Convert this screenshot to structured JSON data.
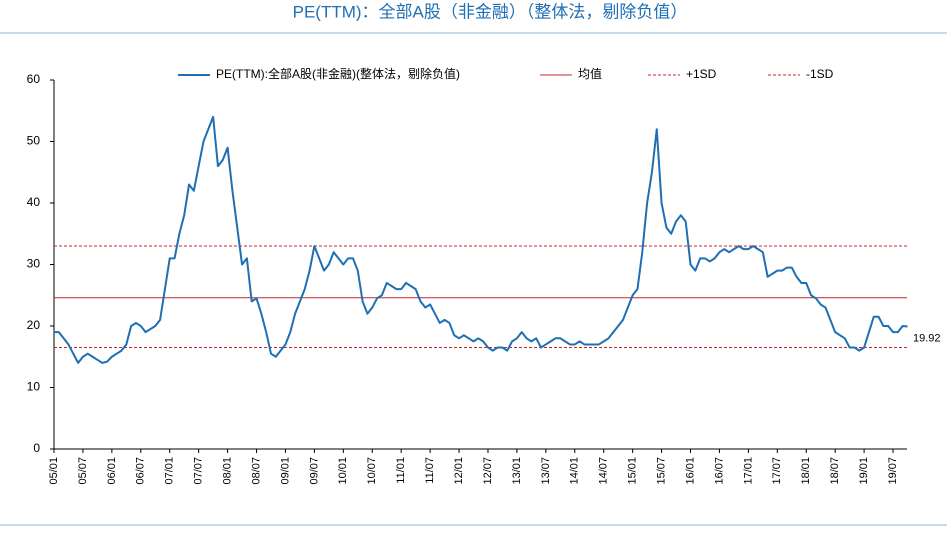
{
  "chart_data": {
    "type": "line",
    "title": "PE(TTM)：全部A股（非金融）（整体法，剔除负值）",
    "categories": [
      "05/01",
      null,
      null,
      null,
      null,
      null,
      "05/07",
      null,
      null,
      null,
      null,
      null,
      "06/01",
      null,
      null,
      null,
      null,
      null,
      "06/07",
      null,
      null,
      null,
      null,
      null,
      "07/01",
      null,
      null,
      null,
      null,
      null,
      "07/07",
      null,
      null,
      null,
      null,
      null,
      "08/01",
      null,
      null,
      null,
      null,
      null,
      "08/07",
      null,
      null,
      null,
      null,
      null,
      "09/01",
      null,
      null,
      null,
      null,
      null,
      "09/07",
      null,
      null,
      null,
      null,
      null,
      "10/01",
      null,
      null,
      null,
      null,
      null,
      "10/07",
      null,
      null,
      null,
      null,
      null,
      "11/01",
      null,
      null,
      null,
      null,
      null,
      "11/07",
      null,
      null,
      null,
      null,
      null,
      "12/01",
      null,
      null,
      null,
      null,
      null,
      "12/07",
      null,
      null,
      null,
      null,
      null,
      "13/01",
      null,
      null,
      null,
      null,
      null,
      "13/07",
      null,
      null,
      null,
      null,
      null,
      "14/01",
      null,
      null,
      null,
      null,
      null,
      "14/07",
      null,
      null,
      null,
      null,
      null,
      "15/01",
      null,
      null,
      null,
      null,
      null,
      "15/07",
      null,
      null,
      null,
      null,
      null,
      "16/01",
      null,
      null,
      null,
      null,
      null,
      "16/07",
      null,
      null,
      null,
      null,
      null,
      "17/01",
      null,
      null,
      null,
      null,
      null,
      "17/07",
      null,
      null,
      null,
      null,
      null,
      "18/01",
      null,
      null,
      null,
      null,
      null,
      "18/07",
      null,
      null,
      null,
      null,
      null,
      "19/01",
      null,
      null,
      null,
      null,
      null,
      "19/07",
      null,
      null,
      null
    ],
    "series": [
      {
        "name": "PE(TTM):全部A股(非金融)(整体法，剔除负值)",
        "color": "#1f6fb4",
        "values": [
          19,
          19,
          18,
          17,
          15.5,
          14,
          15,
          15.5,
          15,
          14.5,
          14,
          14.2,
          15,
          15.5,
          16,
          17,
          20,
          20.5,
          20,
          19,
          19.5,
          20,
          21,
          26,
          31,
          31,
          35,
          38,
          43,
          42,
          46,
          50,
          52,
          54,
          46,
          47,
          49,
          42,
          36,
          30,
          31,
          24,
          24.5,
          22,
          19,
          15.5,
          15,
          16,
          17,
          19,
          22,
          24,
          26,
          29,
          33,
          31,
          29,
          30,
          32,
          31,
          30,
          31,
          31,
          29,
          24,
          22,
          23,
          24.5,
          25,
          27,
          26.5,
          26,
          26,
          27,
          26.5,
          26,
          24,
          23,
          23.5,
          22,
          20.5,
          21,
          20.5,
          18.5,
          18,
          18.5,
          18,
          17.5,
          18,
          17.5,
          16.5,
          16,
          16.5,
          16.5,
          16,
          17.5,
          18,
          19,
          18,
          17.5,
          18,
          16.5,
          17,
          17.5,
          18,
          18,
          17.5,
          17,
          17,
          17.5,
          17,
          17,
          17,
          17,
          17.5,
          18,
          19,
          20,
          21,
          23,
          25,
          26,
          32,
          40,
          45,
          52,
          40,
          36,
          35,
          37,
          38,
          37,
          30,
          29,
          31,
          31,
          30.5,
          31,
          32,
          32.5,
          32,
          32.5,
          33,
          32.5,
          32.5,
          33,
          32.5,
          32,
          28,
          28.5,
          29,
          29,
          29.5,
          29.5,
          28,
          27,
          27,
          25,
          24.5,
          23.5,
          23,
          21,
          19,
          18.5,
          18,
          16.5,
          16.5,
          16,
          16.5,
          19,
          21.5,
          21.5,
          20,
          20,
          19,
          19,
          20,
          19.92
        ]
      }
    ],
    "reference_lines": [
      {
        "name": "均值",
        "value": 24.6,
        "color": "#c0282d",
        "dashed": false
      },
      {
        "name": "+1SD",
        "value": 33.0,
        "color": "#c0282d",
        "dashed": true
      },
      {
        "name": "-1SD",
        "value": 16.5,
        "color": "#c0282d",
        "dashed": true
      }
    ],
    "ylim": [
      0,
      60
    ],
    "yticks": [
      0,
      10,
      20,
      30,
      40,
      50,
      60
    ],
    "grid": false
  }
}
